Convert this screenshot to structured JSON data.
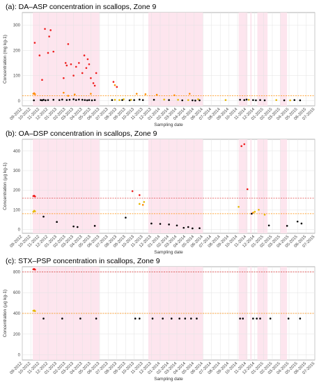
{
  "chart_data": [
    {
      "type": "scatter",
      "title": "(a): DA–ASP concentration in scallops, Zone 9",
      "xlabel": "Sampling date",
      "ylabel": "Concentration (mg kg-1)",
      "ylim": [
        -20,
        350
      ],
      "yticks": [
        0,
        100,
        200,
        300
      ],
      "xlim": [
        "2012-09-01",
        "2015-07-01"
      ],
      "xticks": [
        "09-2012",
        "10-2012",
        "11-2012",
        "12-2012",
        "01-2013",
        "02-2013",
        "03-2013",
        "04-2013",
        "05-2013",
        "06-2013",
        "07-2013",
        "08-2013",
        "09-2013",
        "10-2013",
        "11-2013",
        "12-2013",
        "01-2014",
        "02-2014",
        "03-2014",
        "04-2014",
        "05-2014",
        "06-2014",
        "07-2014",
        "08-2014",
        "09-2014",
        "10-2014",
        "11-2014",
        "12-2014",
        "01-2015",
        "02-2015",
        "03-2015",
        "04-2015",
        "05-2015",
        "06-2015",
        "07-2015"
      ],
      "grid": true,
      "closure_periods": [
        [
          "2012-10-08",
          "2013-05-31"
        ],
        [
          "2013-11-20",
          "2014-06-01"
        ],
        [
          "2014-10-05",
          "2014-11-05"
        ],
        [
          "2014-11-15",
          "2014-11-20"
        ],
        [
          "2014-12-10",
          "2015-01-15"
        ],
        [
          "2015-03-01",
          "2015-03-25"
        ]
      ],
      "thresholds": [
        {
          "value": 20,
          "color": "#ff8c00"
        }
      ],
      "series": [
        {
          "color": "#000000",
          "points": [
            [
              "2012-10-12",
              2
            ],
            [
              "2012-11-05",
              3
            ],
            [
              "2012-11-10",
              2
            ],
            [
              "2012-11-15",
              4
            ],
            [
              "2012-11-22",
              2
            ],
            [
              "2012-12-01",
              3
            ],
            [
              "2012-12-20",
              4
            ],
            [
              "2013-01-10",
              3
            ],
            [
              "2013-01-20",
              5
            ],
            [
              "2013-02-05",
              3
            ],
            [
              "2013-02-15",
              4
            ],
            [
              "2013-03-01",
              6
            ],
            [
              "2013-03-10",
              3
            ],
            [
              "2013-03-20",
              5
            ],
            [
              "2013-04-01",
              4
            ],
            [
              "2013-04-10",
              3
            ],
            [
              "2013-04-18",
              2
            ],
            [
              "2013-04-25",
              3
            ],
            [
              "2013-05-05",
              2
            ],
            [
              "2013-05-15",
              3
            ],
            [
              "2013-07-15",
              3
            ],
            [
              "2013-08-20",
              3
            ],
            [
              "2013-09-15",
              2
            ],
            [
              "2013-10-01",
              3
            ],
            [
              "2013-10-20",
              5
            ],
            [
              "2013-11-01",
              3
            ],
            [
              "2013-12-10",
              4
            ],
            [
              "2014-02-01",
              3
            ],
            [
              "2014-03-20",
              2
            ],
            [
              "2014-04-25",
              2
            ],
            [
              "2014-05-05",
              1
            ],
            [
              "2014-05-20",
              2
            ],
            [
              "2014-10-10",
              4
            ],
            [
              "2014-10-25",
              3
            ],
            [
              "2014-11-02",
              5
            ],
            [
              "2014-11-25",
              3
            ],
            [
              "2014-12-05",
              2
            ],
            [
              "2014-12-20",
              3
            ],
            [
              "2015-01-05",
              2
            ],
            [
              "2015-03-15",
              2
            ],
            [
              "2015-04-20",
              3
            ],
            [
              "2015-05-10",
              2
            ]
          ]
        },
        {
          "color": "#e6b800",
          "points": [
            [
              "2013-07-25",
              4
            ],
            [
              "2013-08-10",
              3
            ],
            [
              "2013-08-25",
              6
            ],
            [
              "2013-09-20",
              4
            ],
            [
              "2014-01-15",
              5
            ],
            [
              "2014-03-05",
              4
            ],
            [
              "2014-04-10",
              3
            ],
            [
              "2014-05-15",
              6
            ],
            [
              "2014-08-20",
              3
            ],
            [
              "2014-11-10",
              4
            ],
            [
              "2015-02-15",
              3
            ],
            [
              "2015-04-05",
              2
            ]
          ]
        },
        {
          "color": "#ff8c00",
          "points": [
            [
              "2012-10-10",
              28
            ],
            [
              "2012-10-13",
              30
            ],
            [
              "2012-10-16",
              26
            ],
            [
              "2013-01-25",
              32
            ],
            [
              "2013-02-10",
              20
            ],
            [
              "2013-03-05",
              25
            ],
            [
              "2013-05-01",
              28
            ],
            [
              "2013-07-25",
              62
            ],
            [
              "2013-10-10",
              28
            ],
            [
              "2013-11-10",
              26
            ],
            [
              "2013-12-20",
              24
            ],
            [
              "2014-02-20",
              22
            ],
            [
              "2014-04-15",
              28
            ]
          ]
        },
        {
          "color": "#ee1c1c",
          "points": [
            [
              "2012-10-15",
              230
            ],
            [
              "2012-11-01",
              180
            ],
            [
              "2012-11-10",
              83
            ],
            [
              "2012-11-20",
              285
            ],
            [
              "2012-12-01",
              190
            ],
            [
              "2012-12-05",
              255
            ],
            [
              "2012-12-10",
              280
            ],
            [
              "2012-12-20",
              195
            ],
            [
              "2013-01-25",
              90
            ],
            [
              "2013-02-01",
              150
            ],
            [
              "2013-02-05",
              140
            ],
            [
              "2013-02-10",
              225
            ],
            [
              "2013-02-20",
              145
            ],
            [
              "2013-03-01",
              100
            ],
            [
              "2013-03-10",
              135
            ],
            [
              "2013-03-20",
              150
            ],
            [
              "2013-04-01",
              110
            ],
            [
              "2013-04-08",
              180
            ],
            [
              "2013-04-15",
              130
            ],
            [
              "2013-04-20",
              165
            ],
            [
              "2013-04-25",
              145
            ],
            [
              "2013-05-01",
              90
            ],
            [
              "2013-05-10",
              70
            ],
            [
              "2013-05-15",
              60
            ],
            [
              "2013-05-20",
              110
            ],
            [
              "2013-07-20",
              75
            ],
            [
              "2013-08-01",
              55
            ]
          ]
        }
      ]
    },
    {
      "type": "scatter",
      "title": "(b): OA–DSP concentration in scallops, Zone 9",
      "xlabel": "Sampling date",
      "ylabel": "Concentration (µg kg-1)",
      "ylim": [
        -20,
        460
      ],
      "yticks": [
        0,
        100,
        200,
        300,
        400
      ],
      "xlim": [
        "2012-09-01",
        "2015-07-01"
      ],
      "xticks": [
        "09-2012",
        "10-2012",
        "11-2012",
        "12-2012",
        "01-2013",
        "02-2013",
        "03-2013",
        "04-2013",
        "05-2013",
        "06-2013",
        "07-2013",
        "08-2013",
        "09-2013",
        "10-2013",
        "11-2013",
        "12-2013",
        "01-2014",
        "02-2014",
        "03-2014",
        "04-2014",
        "05-2014",
        "06-2014",
        "07-2014",
        "08-2014",
        "09-2014",
        "10-2014",
        "11-2014",
        "12-2014",
        "01-2015",
        "02-2015",
        "03-2015",
        "04-2015",
        "05-2015",
        "06-2015",
        "07-2015"
      ],
      "grid": true,
      "closure_periods": [
        [
          "2012-10-08",
          "2013-05-31"
        ],
        [
          "2013-11-20",
          "2014-06-01"
        ],
        [
          "2014-10-05",
          "2014-11-05"
        ],
        [
          "2014-11-15",
          "2014-11-20"
        ],
        [
          "2014-12-10",
          "2015-01-15"
        ],
        [
          "2015-03-01",
          "2015-03-25"
        ]
      ],
      "thresholds": [
        {
          "value": 160,
          "color": "#e05050"
        },
        {
          "value": 80,
          "color": "#ff8c00"
        }
      ],
      "series": [
        {
          "color": "#000000",
          "points": [
            [
              "2012-11-15",
              65
            ],
            [
              "2013-01-01",
              38
            ],
            [
              "2013-03-01",
              15
            ],
            [
              "2013-03-15",
              12
            ],
            [
              "2013-05-15",
              18
            ],
            [
              "2013-09-01",
              60
            ],
            [
              "2013-12-01",
              30
            ],
            [
              "2014-01-01",
              28
            ],
            [
              "2014-02-01",
              25
            ],
            [
              "2014-03-01",
              20
            ],
            [
              "2014-03-25",
              8
            ],
            [
              "2014-04-10",
              12
            ],
            [
              "2014-04-25",
              5
            ],
            [
              "2014-05-20",
              6
            ],
            [
              "2014-11-20",
              80
            ],
            [
              "2015-01-20",
              20
            ],
            [
              "2015-03-25",
              18
            ],
            [
              "2015-05-01",
              40
            ],
            [
              "2015-05-15",
              30
            ]
          ]
        },
        {
          "color": "#e6b800",
          "points": [
            [
              "2012-10-10",
              90
            ],
            [
              "2012-10-13",
              95
            ],
            [
              "2012-10-16",
              92
            ],
            [
              "2013-10-20",
              130
            ],
            [
              "2013-11-05",
              140
            ],
            [
              "2014-10-05",
              115
            ],
            [
              "2014-12-01",
              90
            ],
            [
              "2014-12-15",
              100
            ],
            [
              "2015-01-05",
              75
            ]
          ]
        },
        {
          "color": "#ff8c00",
          "points": [
            [
              "2013-11-01",
              125
            ],
            [
              "2014-11-25",
              85
            ]
          ]
        },
        {
          "color": "#ee1c1c",
          "points": [
            [
              "2012-10-10",
              170
            ],
            [
              "2012-10-13",
              172
            ],
            [
              "2012-10-16",
              168
            ],
            [
              "2013-09-25",
              195
            ],
            [
              "2013-10-20",
              175
            ],
            [
              "2014-10-15",
              425
            ],
            [
              "2014-10-25",
              435
            ],
            [
              "2014-11-05",
              205
            ]
          ]
        }
      ]
    },
    {
      "type": "scatter",
      "title": "(c): STX–PSP concentration in scallops, Zone 9",
      "xlabel": "Sampling date",
      "ylabel": "Concentration (µg kg-1)",
      "ylim": [
        -50,
        850
      ],
      "yticks": [
        0,
        200,
        400,
        600,
        800
      ],
      "xlim": [
        "2012-09-01",
        "2015-07-01"
      ],
      "xticks": [
        "09-2012",
        "10-2012",
        "11-2012",
        "12-2012",
        "01-2013",
        "02-2013",
        "03-2013",
        "04-2013",
        "05-2013",
        "06-2013",
        "07-2013",
        "08-2013",
        "09-2013",
        "10-2013",
        "11-2013",
        "12-2013",
        "01-2014",
        "02-2014",
        "03-2014",
        "04-2014",
        "05-2014",
        "06-2014",
        "07-2014",
        "08-2014",
        "09-2014",
        "10-2014",
        "11-2014",
        "12-2014",
        "01-2015",
        "02-2015",
        "03-2015",
        "04-2015",
        "05-2015",
        "06-2015",
        "07-2015"
      ],
      "grid": true,
      "closure_periods": [
        [
          "2012-10-08",
          "2013-05-31"
        ],
        [
          "2013-11-20",
          "2014-06-01"
        ],
        [
          "2014-10-05",
          "2014-11-05"
        ],
        [
          "2014-11-15",
          "2014-11-20"
        ],
        [
          "2014-12-10",
          "2015-01-15"
        ],
        [
          "2015-03-01",
          "2015-03-25"
        ]
      ],
      "thresholds": [
        {
          "value": 800,
          "color": "#e05050"
        },
        {
          "value": 400,
          "color": "#ff8c00"
        }
      ],
      "series": [
        {
          "color": "#000000",
          "points": [
            [
              "2012-11-15",
              350
            ],
            [
              "2013-01-20",
              350
            ],
            [
              "2013-03-25",
              350
            ],
            [
              "2013-05-20",
              350
            ],
            [
              "2013-10-05",
              350
            ],
            [
              "2013-10-20",
              350
            ],
            [
              "2013-12-05",
              350
            ],
            [
              "2014-01-10",
              350
            ],
            [
              "2014-02-10",
              350
            ],
            [
              "2014-03-10",
              350
            ],
            [
              "2014-03-30",
              350
            ],
            [
              "2014-04-20",
              350
            ],
            [
              "2014-05-10",
              350
            ],
            [
              "2014-10-10",
              350
            ],
            [
              "2014-10-20",
              350
            ],
            [
              "2014-11-25",
              350
            ],
            [
              "2014-12-08",
              350
            ],
            [
              "2014-12-20",
              350
            ],
            [
              "2015-01-25",
              350
            ],
            [
              "2015-03-30",
              350
            ],
            [
              "2015-05-10",
              350
            ]
          ]
        },
        {
          "color": "#e6b800",
          "points": [
            [
              "2012-10-10",
              425
            ],
            [
              "2012-10-13",
              428
            ],
            [
              "2012-10-16",
              422
            ]
          ]
        },
        {
          "color": "#ee1c1c",
          "points": [
            [
              "2012-10-10",
              825
            ],
            [
              "2012-10-13",
              828
            ],
            [
              "2012-10-16",
              822
            ]
          ]
        }
      ]
    }
  ]
}
